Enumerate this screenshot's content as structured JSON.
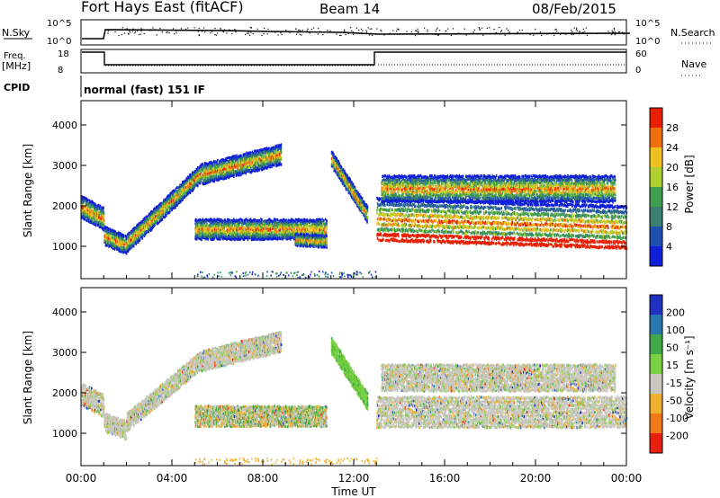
{
  "header": {
    "station": "Fort Hays East (fitACF)",
    "beam": "Beam 14",
    "date": "08/Feb/2015"
  },
  "top_panels": {
    "nsky_label": "N.Sky",
    "nsky_ticks": [
      "10^5",
      "10^0"
    ],
    "nsearch_label": "N.Search",
    "nsearch_ticks": [
      "10^5",
      "10^0"
    ],
    "freq_label": "Freq.",
    "freq_unit": "[MHz]",
    "freq_ticks": [
      "18",
      "8"
    ],
    "nave_label": "Nave",
    "nave_ticks": [
      "60",
      "0"
    ],
    "cpid_label": "CPID",
    "cpid_text": "normal (fast) 151 IF"
  },
  "chart_data": [
    {
      "type": "heatmap",
      "name": "power",
      "ylabel": "Slant Range [km]",
      "y_ticks": [
        "1000",
        "2000",
        "3000",
        "4000"
      ],
      "ylim": [
        200,
        4600
      ],
      "xlim": [
        0,
        24
      ],
      "colorbar_label": "Power [dB]",
      "colorbar_ticks": [
        "4",
        "8",
        "12",
        "16",
        "20",
        "24",
        "28"
      ],
      "colorscale": [
        "#1020d8",
        "#2050b0",
        "#3a8070",
        "#40a050",
        "#b0d030",
        "#f0c020",
        "#f07010",
        "#e82000"
      ],
      "tracks": [
        {
          "t0": 0,
          "t1": 1.0,
          "r0": 2000,
          "r1": 1700,
          "w": 500
        },
        {
          "t0": 1.0,
          "t1": 2.0,
          "r0": 1300,
          "r1": 1050,
          "w": 400
        },
        {
          "t0": 2.0,
          "t1": 5.2,
          "r0": 1100,
          "r1": 2800,
          "w": 400
        },
        {
          "t0": 5.2,
          "t1": 8.8,
          "r0": 2800,
          "r1": 3300,
          "w": 450
        },
        {
          "t0": 5.0,
          "t1": 10.8,
          "r0": 1450,
          "r1": 1450,
          "w": 450
        },
        {
          "t0": 9.4,
          "t1": 10.8,
          "r0": 1200,
          "r1": 1150,
          "w": 250
        },
        {
          "t0": 11.0,
          "t1": 12.6,
          "r0": 3200,
          "r1": 1800,
          "w": 350
        },
        {
          "t0": 13.0,
          "t1": 24.0,
          "r0": 1700,
          "r1": 1500,
          "w": 1000
        },
        {
          "t0": 13.2,
          "t1": 23.5,
          "r0": 2450,
          "r1": 2450,
          "w": 600
        }
      ]
    },
    {
      "type": "heatmap",
      "name": "velocity",
      "ylabel": "Slant Range [km]",
      "y_ticks": [
        "1000",
        "2000",
        "3000",
        "4000"
      ],
      "ylim": [
        200,
        4600
      ],
      "xlim": [
        0,
        24
      ],
      "x_ticks": [
        "00:00",
        "04:00",
        "08:00",
        "12:00",
        "16:00",
        "20:00",
        "00:00"
      ],
      "xlabel": "Time UT",
      "colorbar_label": "Velocity [m s⁻¹]",
      "colorbar_ticks": [
        "200",
        "100",
        "50",
        "15",
        "-15",
        "-50",
        "-100",
        "-200"
      ],
      "colorscale": [
        "#2030c0",
        "#2878b0",
        "#40a848",
        "#7ad040",
        "#c8c8c0",
        "#f0b030",
        "#f07818",
        "#e82010"
      ],
      "tracks": [
        {
          "t0": 0,
          "t1": 1.0,
          "r0": 2000,
          "r1": 1700,
          "w": 500
        },
        {
          "t0": 1.0,
          "t1": 2.0,
          "r0": 1300,
          "r1": 1100,
          "w": 400
        },
        {
          "t0": 2.0,
          "t1": 5.2,
          "r0": 1300,
          "r1": 2800,
          "w": 400
        },
        {
          "t0": 5.2,
          "t1": 8.8,
          "r0": 2800,
          "r1": 3300,
          "w": 450
        },
        {
          "t0": 5.0,
          "t1": 10.8,
          "r0": 1450,
          "r1": 1450,
          "w": 450
        },
        {
          "t0": 11.0,
          "t1": 12.6,
          "r0": 3200,
          "r1": 1800,
          "w": 350
        },
        {
          "t0": 13.0,
          "t1": 24.0,
          "r0": 1550,
          "r1": 1550,
          "w": 700
        },
        {
          "t0": 13.2,
          "t1": 23.5,
          "r0": 2400,
          "r1": 2400,
          "w": 600
        }
      ]
    }
  ]
}
